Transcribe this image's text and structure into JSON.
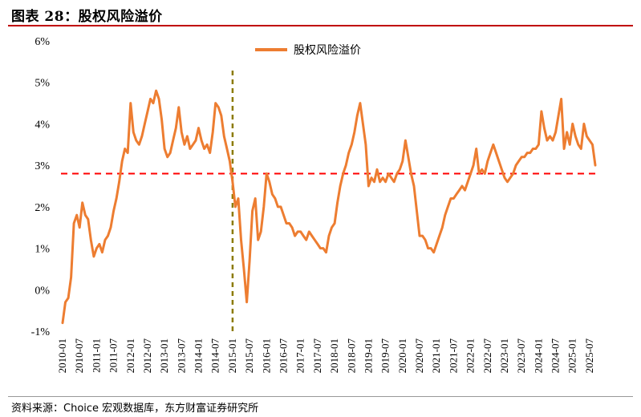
{
  "figure": {
    "title": "图表 28：股权风险溢价",
    "source": "资料来源：Choice 宏观数据库，东方财富证券研究所"
  },
  "chart_data": {
    "type": "line",
    "ylim": [
      -1,
      6
    ],
    "y_ticks": [
      "-1%",
      "0%",
      "1%",
      "2%",
      "3%",
      "4%",
      "5%",
      "6%"
    ],
    "x_ticks": [
      "2010-01",
      "2010-07",
      "2011-01",
      "2011-07",
      "2012-01",
      "2012-07",
      "2013-01",
      "2013-07",
      "2014-01",
      "2014-07",
      "2015-01",
      "2015-07",
      "2016-01",
      "2016-07",
      "2017-01",
      "2017-07",
      "2018-01",
      "2018-07",
      "2019-01",
      "2019-07",
      "2020-01",
      "2020-07",
      "2021-01",
      "2021-07",
      "2022-01",
      "2022-07",
      "2023-01",
      "2023-07",
      "2024-01",
      "2024-07",
      "2025-01",
      "2025-07"
    ],
    "grid": false,
    "legend_position": "top",
    "series": [
      {
        "name": "股权风险溢价",
        "color": "#ED7D31",
        "x": [
          "2010-01",
          "2010-02",
          "2010-03",
          "2010-04",
          "2010-05",
          "2010-06",
          "2010-07",
          "2010-08",
          "2010-09",
          "2010-10",
          "2010-11",
          "2010-12",
          "2011-01",
          "2011-02",
          "2011-03",
          "2011-04",
          "2011-05",
          "2011-06",
          "2011-07",
          "2011-08",
          "2011-09",
          "2011-10",
          "2011-11",
          "2011-12",
          "2012-01",
          "2012-02",
          "2012-03",
          "2012-04",
          "2012-05",
          "2012-06",
          "2012-07",
          "2012-08",
          "2012-09",
          "2012-10",
          "2012-11",
          "2012-12",
          "2013-01",
          "2013-02",
          "2013-03",
          "2013-04",
          "2013-05",
          "2013-06",
          "2013-07",
          "2013-08",
          "2013-09",
          "2013-10",
          "2013-11",
          "2013-12",
          "2014-01",
          "2014-02",
          "2014-03",
          "2014-04",
          "2014-05",
          "2014-06",
          "2014-07",
          "2014-08",
          "2014-09",
          "2014-10",
          "2014-11",
          "2014-12",
          "2015-01",
          "2015-02",
          "2015-03",
          "2015-04",
          "2015-05",
          "2015-06",
          "2015-07",
          "2015-08",
          "2015-09",
          "2015-10",
          "2015-11",
          "2015-12",
          "2016-01",
          "2016-02",
          "2016-03",
          "2016-04",
          "2016-05",
          "2016-06",
          "2016-07",
          "2016-08",
          "2016-09",
          "2016-10",
          "2016-11",
          "2016-12",
          "2017-01",
          "2017-02",
          "2017-03",
          "2017-04",
          "2017-05",
          "2017-06",
          "2017-07",
          "2017-08",
          "2017-09",
          "2017-10",
          "2017-11",
          "2017-12",
          "2018-01",
          "2018-02",
          "2018-03",
          "2018-04",
          "2018-05",
          "2018-06",
          "2018-07",
          "2018-08",
          "2018-09",
          "2018-10",
          "2018-11",
          "2018-12",
          "2019-01",
          "2019-02",
          "2019-03",
          "2019-04",
          "2019-05",
          "2019-06",
          "2019-07",
          "2019-08",
          "2019-09",
          "2019-10",
          "2019-11",
          "2019-12",
          "2020-01",
          "2020-02",
          "2020-03",
          "2020-04",
          "2020-05",
          "2020-06",
          "2020-07",
          "2020-08",
          "2020-09",
          "2020-10",
          "2020-11",
          "2020-12",
          "2021-01",
          "2021-02",
          "2021-03",
          "2021-04",
          "2021-05",
          "2021-06",
          "2021-07",
          "2021-08",
          "2021-09",
          "2021-10",
          "2021-11",
          "2021-12",
          "2022-01",
          "2022-02",
          "2022-03",
          "2022-04",
          "2022-05",
          "2022-06",
          "2022-07",
          "2022-08",
          "2022-09",
          "2022-10",
          "2022-11",
          "2022-12",
          "2023-01",
          "2023-02",
          "2023-03",
          "2023-04",
          "2023-05",
          "2023-06",
          "2023-07",
          "2023-08",
          "2023-09",
          "2023-10",
          "2023-11",
          "2023-12",
          "2024-01",
          "2024-02",
          "2024-03",
          "2024-04",
          "2024-05",
          "2024-06",
          "2024-07",
          "2024-08",
          "2024-09",
          "2024-10",
          "2024-11",
          "2024-12",
          "2025-01",
          "2025-02",
          "2025-03",
          "2025-04",
          "2025-05",
          "2025-06",
          "2025-07",
          "2025-08",
          "2025-09"
        ],
        "values": [
          -0.8,
          -0.3,
          -0.2,
          0.3,
          1.6,
          1.8,
          1.5,
          2.1,
          1.8,
          1.7,
          1.2,
          0.8,
          1.0,
          1.1,
          0.9,
          1.2,
          1.3,
          1.5,
          1.9,
          2.2,
          2.6,
          3.1,
          3.4,
          3.3,
          4.5,
          3.8,
          3.6,
          3.5,
          3.7,
          4.0,
          4.3,
          4.6,
          4.5,
          4.8,
          4.6,
          4.1,
          3.4,
          3.2,
          3.3,
          3.6,
          3.9,
          4.4,
          3.8,
          3.5,
          3.7,
          3.4,
          3.5,
          3.6,
          3.9,
          3.6,
          3.4,
          3.5,
          3.3,
          3.8,
          4.5,
          4.4,
          4.2,
          3.7,
          3.4,
          3.1,
          2.6,
          2.0,
          2.2,
          1.2,
          0.5,
          -0.3,
          0.7,
          1.9,
          2.2,
          1.2,
          1.4,
          2.0,
          2.8,
          2.6,
          2.3,
          2.2,
          2.0,
          2.0,
          1.8,
          1.6,
          1.6,
          1.5,
          1.3,
          1.4,
          1.4,
          1.3,
          1.2,
          1.4,
          1.3,
          1.2,
          1.1,
          1.0,
          1.0,
          0.9,
          1.3,
          1.5,
          1.6,
          2.1,
          2.5,
          2.8,
          3.0,
          3.3,
          3.5,
          3.8,
          4.2,
          4.5,
          4.0,
          3.5,
          2.5,
          2.7,
          2.6,
          2.9,
          2.6,
          2.7,
          2.6,
          2.8,
          2.7,
          2.6,
          2.8,
          2.9,
          3.1,
          3.6,
          3.2,
          2.8,
          2.5,
          1.9,
          1.3,
          1.3,
          1.2,
          1.0,
          1.0,
          0.9,
          1.1,
          1.3,
          1.5,
          1.8,
          2.0,
          2.2,
          2.2,
          2.3,
          2.4,
          2.5,
          2.4,
          2.6,
          2.8,
          3.0,
          3.4,
          2.8,
          2.9,
          2.8,
          3.1,
          3.3,
          3.5,
          3.3,
          3.1,
          2.9,
          2.7,
          2.6,
          2.7,
          2.8,
          3.0,
          3.1,
          3.2,
          3.2,
          3.3,
          3.3,
          3.4,
          3.4,
          3.5,
          4.3,
          3.9,
          3.6,
          3.7,
          3.6,
          3.8,
          4.2,
          4.6,
          3.4,
          3.8,
          3.5,
          4.0,
          3.7,
          3.5,
          3.4,
          4.0,
          3.7,
          3.6,
          3.5,
          3.0
        ]
      }
    ],
    "reference_lines": [
      {
        "orientation": "horizontal",
        "value": 2.8,
        "color": "#FF0000",
        "style": "dashed"
      },
      {
        "orientation": "vertical",
        "x": "2015-01",
        "color": "#8B7A00",
        "style": "dashed"
      }
    ]
  }
}
